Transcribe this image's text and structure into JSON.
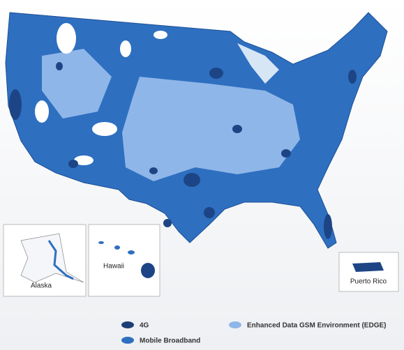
{
  "insets": [
    {
      "label": "Alaska"
    },
    {
      "label": "Hawaii"
    },
    {
      "label": "Puerto Rico"
    }
  ],
  "legend": [
    {
      "label": "4G"
    },
    {
      "label": "Mobile Broadband"
    },
    {
      "label": "Enhanced Data GSM Environment (EDGE)"
    }
  ]
}
